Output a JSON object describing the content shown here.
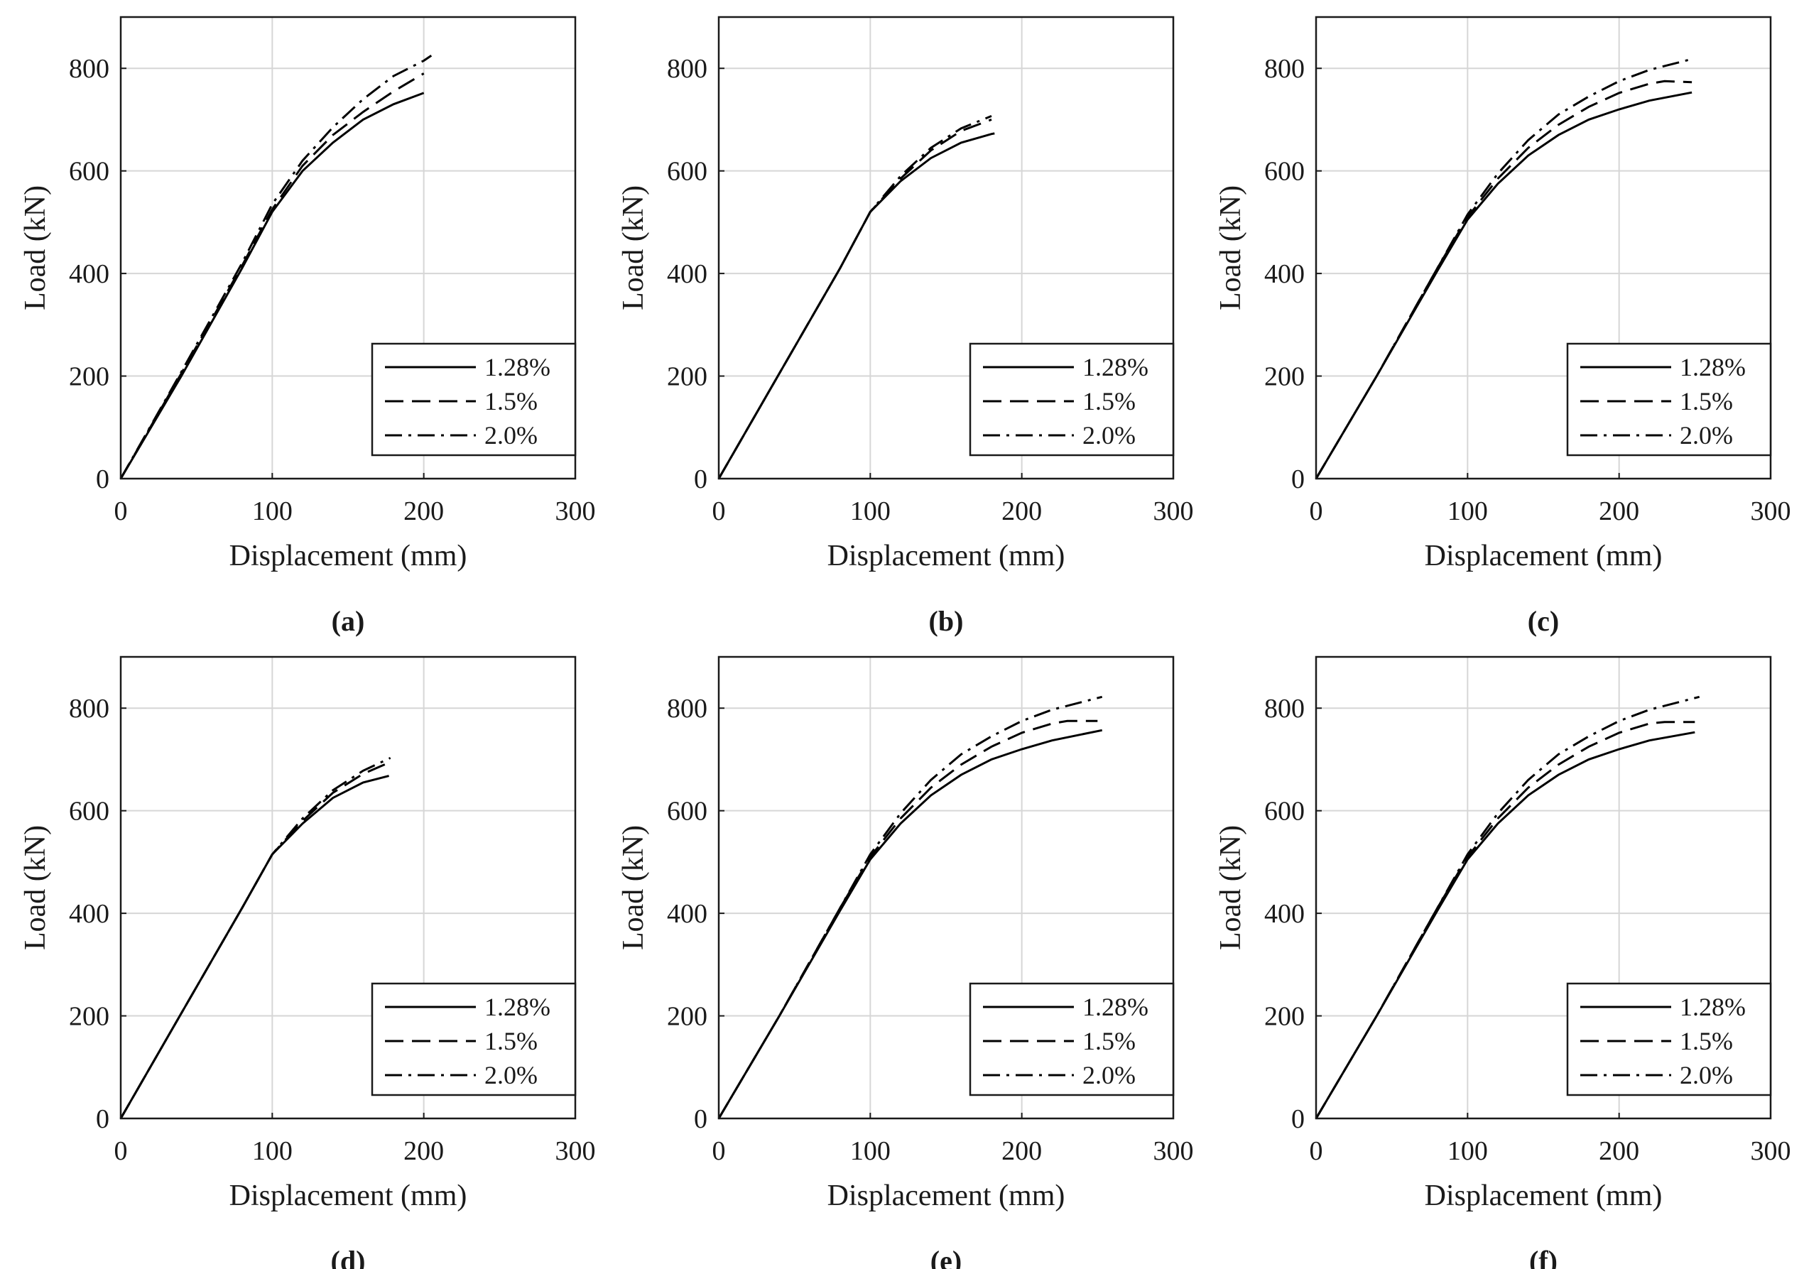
{
  "chart_data": [
    {
      "type": "line",
      "panel_label": "(a)",
      "xlabel": "Displacement (mm)",
      "ylabel": "Load (kN)",
      "xlim": [
        0,
        300
      ],
      "ylim": [
        0,
        900
      ],
      "xticks": [
        0,
        100,
        200,
        300
      ],
      "yticks": [
        0,
        200,
        400,
        600,
        800
      ],
      "grid": true,
      "legend_position": "bottom-right",
      "series": [
        {
          "name": "1.28%",
          "style": "solid",
          "x": [
            0,
            40,
            80,
            100,
            120,
            140,
            160,
            180,
            200
          ],
          "y": [
            0,
            200,
            410,
            520,
            600,
            655,
            700,
            730,
            752
          ]
        },
        {
          "name": "1.5%",
          "style": "dashed",
          "x": [
            0,
            40,
            80,
            100,
            120,
            140,
            160,
            180,
            200
          ],
          "y": [
            0,
            205,
            415,
            525,
            610,
            670,
            715,
            755,
            790
          ]
        },
        {
          "name": "2.0%",
          "style": "dashdot",
          "x": [
            0,
            40,
            80,
            100,
            120,
            140,
            160,
            180,
            200,
            205
          ],
          "y": [
            0,
            208,
            420,
            535,
            620,
            685,
            740,
            785,
            815,
            825
          ]
        }
      ]
    },
    {
      "type": "line",
      "panel_label": "(b)",
      "xlabel": "Displacement (mm)",
      "ylabel": "Load (kN)",
      "xlim": [
        0,
        300
      ],
      "ylim": [
        0,
        900
      ],
      "xticks": [
        0,
        100,
        200,
        300
      ],
      "yticks": [
        0,
        200,
        400,
        600,
        800
      ],
      "grid": true,
      "legend_position": "bottom-right",
      "series": [
        {
          "name": "1.28%",
          "style": "solid",
          "x": [
            0,
            40,
            80,
            100,
            120,
            140,
            160,
            180,
            182
          ],
          "y": [
            0,
            205,
            410,
            520,
            580,
            625,
            655,
            672,
            673
          ]
        },
        {
          "name": "1.5%",
          "style": "dashed",
          "x": [
            0,
            40,
            80,
            100,
            120,
            140,
            160,
            180
          ],
          "y": [
            0,
            205,
            410,
            520,
            585,
            640,
            678,
            700
          ]
        },
        {
          "name": "2.0%",
          "style": "dashdot",
          "x": [
            0,
            40,
            80,
            100,
            120,
            140,
            160,
            180
          ],
          "y": [
            0,
            205,
            410,
            520,
            590,
            645,
            683,
            707
          ]
        }
      ]
    },
    {
      "type": "line",
      "panel_label": "(c)",
      "xlabel": "Displacement (mm)",
      "ylabel": "Load (kN)",
      "xlim": [
        0,
        300
      ],
      "ylim": [
        0,
        900
      ],
      "xticks": [
        0,
        100,
        200,
        300
      ],
      "yticks": [
        0,
        200,
        400,
        600,
        800
      ],
      "grid": true,
      "legend_position": "bottom-right",
      "series": [
        {
          "name": "1.28%",
          "style": "solid",
          "x": [
            0,
            40,
            80,
            100,
            120,
            140,
            160,
            180,
            200,
            220,
            248
          ],
          "y": [
            0,
            200,
            405,
            505,
            575,
            630,
            670,
            700,
            720,
            737,
            753
          ]
        },
        {
          "name": "1.5%",
          "style": "dashed",
          "x": [
            0,
            40,
            80,
            100,
            120,
            140,
            160,
            180,
            200,
            220,
            230,
            248
          ],
          "y": [
            0,
            200,
            410,
            510,
            585,
            645,
            690,
            725,
            752,
            770,
            775,
            773
          ]
        },
        {
          "name": "2.0%",
          "style": "dashdot",
          "x": [
            0,
            40,
            80,
            100,
            120,
            140,
            160,
            180,
            200,
            220,
            248
          ],
          "y": [
            0,
            200,
            410,
            515,
            595,
            660,
            710,
            745,
            775,
            797,
            818
          ]
        }
      ]
    },
    {
      "type": "line",
      "panel_label": "(d)",
      "xlabel": "Displacement (mm)",
      "ylabel": "Load (kN)",
      "xlim": [
        0,
        300
      ],
      "ylim": [
        0,
        900
      ],
      "xticks": [
        0,
        100,
        200,
        300
      ],
      "yticks": [
        0,
        200,
        400,
        600,
        800
      ],
      "grid": true,
      "legend_position": "bottom-right",
      "series": [
        {
          "name": "1.28%",
          "style": "solid",
          "x": [
            0,
            40,
            80,
            100,
            120,
            140,
            160,
            177
          ],
          "y": [
            0,
            205,
            410,
            515,
            575,
            625,
            655,
            668
          ]
        },
        {
          "name": "1.5%",
          "style": "dashed",
          "x": [
            0,
            40,
            80,
            100,
            120,
            140,
            160,
            178
          ],
          "y": [
            0,
            205,
            410,
            515,
            580,
            635,
            672,
            695
          ]
        },
        {
          "name": "2.0%",
          "style": "dashdot",
          "x": [
            0,
            40,
            80,
            100,
            120,
            140,
            160,
            178
          ],
          "y": [
            0,
            205,
            410,
            515,
            585,
            640,
            678,
            703
          ]
        }
      ]
    },
    {
      "type": "line",
      "panel_label": "(e)",
      "xlabel": "Displacement (mm)",
      "ylabel": "Load (kN)",
      "xlim": [
        0,
        300
      ],
      "ylim": [
        0,
        900
      ],
      "xticks": [
        0,
        100,
        200,
        300
      ],
      "yticks": [
        0,
        200,
        400,
        600,
        800
      ],
      "grid": true,
      "legend_position": "bottom-right",
      "series": [
        {
          "name": "1.28%",
          "style": "solid",
          "x": [
            0,
            40,
            80,
            100,
            120,
            140,
            160,
            180,
            200,
            220,
            253
          ],
          "y": [
            0,
            200,
            405,
            505,
            575,
            630,
            670,
            700,
            720,
            737,
            757
          ]
        },
        {
          "name": "1.5%",
          "style": "dashed",
          "x": [
            0,
            40,
            80,
            100,
            120,
            140,
            160,
            180,
            200,
            220,
            230,
            250
          ],
          "y": [
            0,
            200,
            410,
            510,
            585,
            645,
            690,
            725,
            752,
            770,
            775,
            775
          ]
        },
        {
          "name": "2.0%",
          "style": "dashdot",
          "x": [
            0,
            40,
            80,
            100,
            120,
            140,
            160,
            180,
            200,
            220,
            253
          ],
          "y": [
            0,
            200,
            410,
            515,
            595,
            660,
            710,
            745,
            775,
            797,
            822
          ]
        }
      ]
    },
    {
      "type": "line",
      "panel_label": "(f)",
      "xlabel": "Displacement (mm)",
      "ylabel": "Load (kN)",
      "xlim": [
        0,
        300
      ],
      "ylim": [
        0,
        900
      ],
      "xticks": [
        0,
        100,
        200,
        300
      ],
      "yticks": [
        0,
        200,
        400,
        600,
        800
      ],
      "grid": true,
      "legend_position": "bottom-right",
      "series": [
        {
          "name": "1.28%",
          "style": "solid",
          "x": [
            0,
            40,
            80,
            100,
            120,
            140,
            160,
            180,
            200,
            220,
            250
          ],
          "y": [
            0,
            200,
            405,
            505,
            575,
            630,
            670,
            700,
            720,
            737,
            753
          ]
        },
        {
          "name": "1.5%",
          "style": "dashed",
          "x": [
            0,
            40,
            80,
            100,
            120,
            140,
            160,
            180,
            200,
            220,
            230,
            250
          ],
          "y": [
            0,
            200,
            410,
            510,
            585,
            645,
            690,
            725,
            752,
            770,
            773,
            773
          ]
        },
        {
          "name": "2.0%",
          "style": "dashdot",
          "x": [
            0,
            40,
            80,
            100,
            120,
            140,
            160,
            180,
            200,
            220,
            253
          ],
          "y": [
            0,
            200,
            410,
            515,
            595,
            660,
            710,
            745,
            775,
            797,
            822
          ]
        }
      ]
    }
  ]
}
